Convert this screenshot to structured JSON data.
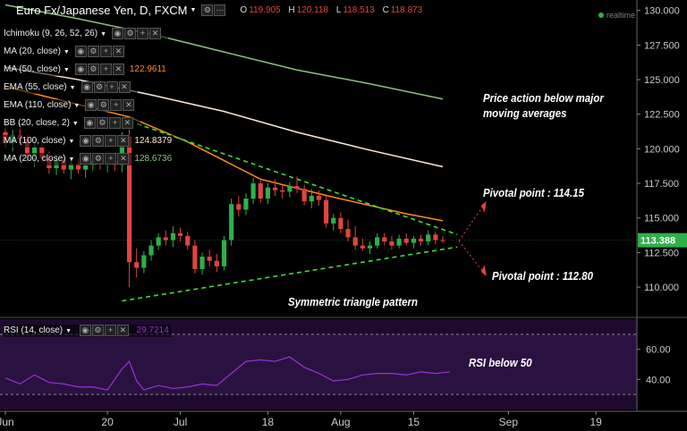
{
  "header": {
    "title": "Euro Fx/Japanese Yen, D, FXCM",
    "open_label": "O",
    "open": "119.905",
    "high_label": "H",
    "high": "120.118",
    "low_label": "L",
    "low": "118.513",
    "close_label": "C",
    "close": "118.873",
    "realtime": "realtime"
  },
  "indicators": [
    {
      "label": "Ichimoku (9, 26, 52, 26)",
      "value": ""
    },
    {
      "label": "MA (20, close)",
      "value": ""
    },
    {
      "label": "MA (50, close)",
      "value": "122.9611",
      "color": "#ff8c1a"
    },
    {
      "label": "EMA (55, close)",
      "value": ""
    },
    {
      "label": "EMA (110, close)",
      "value": ""
    },
    {
      "label": "BB (20, close, 2)",
      "value": ""
    },
    {
      "label": "MA (100, close)",
      "value": "124.8379",
      "color": "#ffe9d6"
    },
    {
      "label": "MA (200, close)",
      "value": "128.6736",
      "color": "#8fbf80"
    }
  ],
  "rsi_indicator": {
    "label": "RSI (14, close)",
    "value": "29.7214",
    "color": "#9b30d9"
  },
  "annotations": {
    "price_action": "Price action below major\nmoving averages",
    "pivot_high": "Pivotal point : 114.15",
    "pivot_low": "Pivotal point : 112.80",
    "triangle": "Symmetric triangle pattern",
    "rsi": "RSI below 50"
  },
  "colors": {
    "up": "#2db04a",
    "down": "#e0443f",
    "ma50": "#ff8c1a",
    "ma100": "#ffe9d6",
    "ma200": "#8fbf80",
    "trend": "#39e039",
    "rsi": "#9b30d9",
    "rsi_bg": "#1e0a2e",
    "current_price_bg": "#2db04a"
  },
  "chart_data": {
    "type": "candlestick",
    "title": "Euro Fx/Japanese Yen, D, FXCM",
    "y_ticks": [
      110.0,
      112.5,
      115.0,
      117.5,
      120.0,
      122.5,
      125.0,
      127.5,
      130.0
    ],
    "ylim": [
      108.0,
      130.5
    ],
    "current_price": "113.388",
    "x_tick_labels": [
      "Jun",
      "20",
      "Jul",
      "18",
      "Aug",
      "15",
      "Sep",
      "19"
    ],
    "x_tick_index": [
      0,
      14,
      24,
      36,
      46,
      56,
      69,
      81
    ],
    "candles": [
      {
        "o": 121.2,
        "h": 121.8,
        "l": 120.1,
        "c": 120.4
      },
      {
        "o": 120.4,
        "h": 121.4,
        "l": 119.8,
        "c": 121.0
      },
      {
        "o": 121.0,
        "h": 121.9,
        "l": 120.2,
        "c": 120.7
      },
      {
        "o": 120.7,
        "h": 121.0,
        "l": 119.0,
        "c": 119.6
      },
      {
        "o": 119.6,
        "h": 120.4,
        "l": 118.7,
        "c": 120.1
      },
      {
        "o": 120.1,
        "h": 120.6,
        "l": 119.0,
        "c": 119.3
      },
      {
        "o": 119.3,
        "h": 119.8,
        "l": 118.2,
        "c": 118.6
      },
      {
        "o": 118.6,
        "h": 119.6,
        "l": 118.1,
        "c": 119.2
      },
      {
        "o": 119.2,
        "h": 119.6,
        "l": 118.2,
        "c": 118.5
      },
      {
        "o": 118.5,
        "h": 119.2,
        "l": 117.8,
        "c": 118.9
      },
      {
        "o": 118.9,
        "h": 119.3,
        "l": 118.2,
        "c": 118.5
      },
      {
        "o": 118.5,
        "h": 119.1,
        "l": 117.9,
        "c": 118.8
      },
      {
        "o": 118.8,
        "h": 119.5,
        "l": 118.4,
        "c": 119.1
      },
      {
        "o": 119.1,
        "h": 119.6,
        "l": 118.5,
        "c": 118.9
      },
      {
        "o": 118.9,
        "h": 119.4,
        "l": 118.3,
        "c": 119.0
      },
      {
        "o": 119.0,
        "h": 119.5,
        "l": 118.4,
        "c": 118.8
      },
      {
        "o": 118.8,
        "h": 121.2,
        "l": 118.3,
        "c": 120.9
      },
      {
        "o": 120.9,
        "h": 121.4,
        "l": 110.0,
        "c": 111.8
      },
      {
        "o": 111.8,
        "h": 112.8,
        "l": 110.7,
        "c": 111.4
      },
      {
        "o": 111.4,
        "h": 112.6,
        "l": 111.0,
        "c": 112.3
      },
      {
        "o": 112.3,
        "h": 113.4,
        "l": 111.9,
        "c": 113.0
      },
      {
        "o": 113.0,
        "h": 113.9,
        "l": 112.7,
        "c": 113.6
      },
      {
        "o": 113.6,
        "h": 114.1,
        "l": 113.0,
        "c": 113.4
      },
      {
        "o": 113.4,
        "h": 114.4,
        "l": 112.9,
        "c": 113.9
      },
      {
        "o": 113.9,
        "h": 114.3,
        "l": 113.3,
        "c": 113.7
      },
      {
        "o": 113.7,
        "h": 114.0,
        "l": 112.7,
        "c": 113.0
      },
      {
        "o": 113.0,
        "h": 113.4,
        "l": 111.0,
        "c": 111.3
      },
      {
        "o": 111.3,
        "h": 112.5,
        "l": 110.9,
        "c": 112.2
      },
      {
        "o": 112.2,
        "h": 112.7,
        "l": 111.5,
        "c": 111.9
      },
      {
        "o": 111.9,
        "h": 112.4,
        "l": 111.1,
        "c": 111.5
      },
      {
        "o": 111.5,
        "h": 113.7,
        "l": 111.2,
        "c": 113.4
      },
      {
        "o": 113.4,
        "h": 116.4,
        "l": 113.0,
        "c": 116.0
      },
      {
        "o": 116.0,
        "h": 116.6,
        "l": 115.1,
        "c": 115.6
      },
      {
        "o": 115.6,
        "h": 116.8,
        "l": 115.2,
        "c": 116.4
      },
      {
        "o": 116.4,
        "h": 117.9,
        "l": 116.0,
        "c": 117.5
      },
      {
        "o": 117.5,
        "h": 117.8,
        "l": 116.1,
        "c": 116.4
      },
      {
        "o": 116.4,
        "h": 117.5,
        "l": 116.0,
        "c": 117.2
      },
      {
        "o": 117.2,
        "h": 117.8,
        "l": 116.6,
        "c": 117.0
      },
      {
        "o": 117.0,
        "h": 117.4,
        "l": 116.4,
        "c": 116.9
      },
      {
        "o": 116.9,
        "h": 117.6,
        "l": 116.5,
        "c": 117.3
      },
      {
        "o": 117.3,
        "h": 118.0,
        "l": 116.8,
        "c": 117.1
      },
      {
        "o": 117.1,
        "h": 117.4,
        "l": 115.9,
        "c": 116.2
      },
      {
        "o": 116.2,
        "h": 117.1,
        "l": 115.7,
        "c": 116.6
      },
      {
        "o": 116.6,
        "h": 117.0,
        "l": 115.9,
        "c": 116.3
      },
      {
        "o": 116.3,
        "h": 116.6,
        "l": 114.3,
        "c": 114.6
      },
      {
        "o": 114.6,
        "h": 115.3,
        "l": 114.1,
        "c": 115.0
      },
      {
        "o": 115.0,
        "h": 115.4,
        "l": 113.9,
        "c": 114.2
      },
      {
        "o": 114.2,
        "h": 114.9,
        "l": 113.3,
        "c": 113.6
      },
      {
        "o": 113.6,
        "h": 114.4,
        "l": 112.7,
        "c": 113.0
      },
      {
        "o": 113.0,
        "h": 113.5,
        "l": 112.6,
        "c": 112.8
      },
      {
        "o": 112.8,
        "h": 113.3,
        "l": 112.4,
        "c": 113.0
      },
      {
        "o": 113.0,
        "h": 113.9,
        "l": 112.8,
        "c": 113.6
      },
      {
        "o": 113.6,
        "h": 113.9,
        "l": 113.0,
        "c": 113.3
      },
      {
        "o": 113.3,
        "h": 113.7,
        "l": 112.7,
        "c": 113.0
      },
      {
        "o": 113.0,
        "h": 113.8,
        "l": 112.8,
        "c": 113.5
      },
      {
        "o": 113.5,
        "h": 113.9,
        "l": 113.0,
        "c": 113.2
      },
      {
        "o": 113.2,
        "h": 113.7,
        "l": 112.8,
        "c": 113.5
      },
      {
        "o": 113.5,
        "h": 113.8,
        "l": 113.0,
        "c": 113.3
      },
      {
        "o": 113.3,
        "h": 114.1,
        "l": 113.0,
        "c": 113.8
      },
      {
        "o": 113.8,
        "h": 114.0,
        "l": 113.1,
        "c": 113.4
      },
      {
        "o": 113.4,
        "h": 113.7,
        "l": 113.2,
        "c": 113.388
      }
    ],
    "series": [
      {
        "name": "MA (50, close)",
        "color": "#ff8c1a",
        "x": [
          0,
          10,
          17,
          25,
          35,
          45,
          55,
          60
        ],
        "y": [
          124.5,
          123.2,
          122.3,
          120.5,
          117.8,
          116.5,
          115.3,
          114.8
        ]
      },
      {
        "name": "MA (100, close)",
        "color": "#ffe9d6",
        "x": [
          0,
          10,
          20,
          30,
          40,
          50,
          60
        ],
        "y": [
          125.9,
          125.0,
          123.9,
          122.7,
          121.2,
          119.9,
          118.7
        ]
      },
      {
        "name": "MA (200, close)",
        "color": "#8fbf80",
        "x": [
          0,
          10,
          20,
          30,
          40,
          50,
          60
        ],
        "y": [
          130.4,
          129.4,
          128.3,
          127.0,
          125.7,
          124.7,
          123.6
        ]
      },
      {
        "name": "Upper trendline",
        "color": "#39e039",
        "x": [
          17,
          62
        ],
        "y": [
          122.0,
          113.8
        ]
      },
      {
        "name": "Lower trendline",
        "color": "#39e039",
        "x": [
          16,
          62
        ],
        "y": [
          109.0,
          112.9
        ]
      }
    ],
    "rsi": {
      "y_ticks": [
        40.0,
        60.0
      ],
      "ylim": [
        20,
        80
      ],
      "overbought": 70,
      "oversold": 30,
      "x": [
        0,
        2,
        4,
        6,
        8,
        10,
        12,
        14,
        16,
        17,
        18,
        19,
        21,
        23,
        25,
        27,
        29,
        31,
        33,
        35,
        37,
        39,
        41,
        43,
        45,
        47,
        49,
        51,
        53,
        55,
        57,
        59,
        61
      ],
      "values": [
        41,
        37,
        43,
        38,
        37,
        35,
        35,
        33,
        47,
        52,
        39,
        33,
        36,
        34,
        35,
        37,
        36,
        44,
        52,
        53,
        52,
        55,
        48,
        44,
        39,
        40,
        43,
        44,
        44,
        43,
        45,
        44,
        45
      ]
    }
  }
}
